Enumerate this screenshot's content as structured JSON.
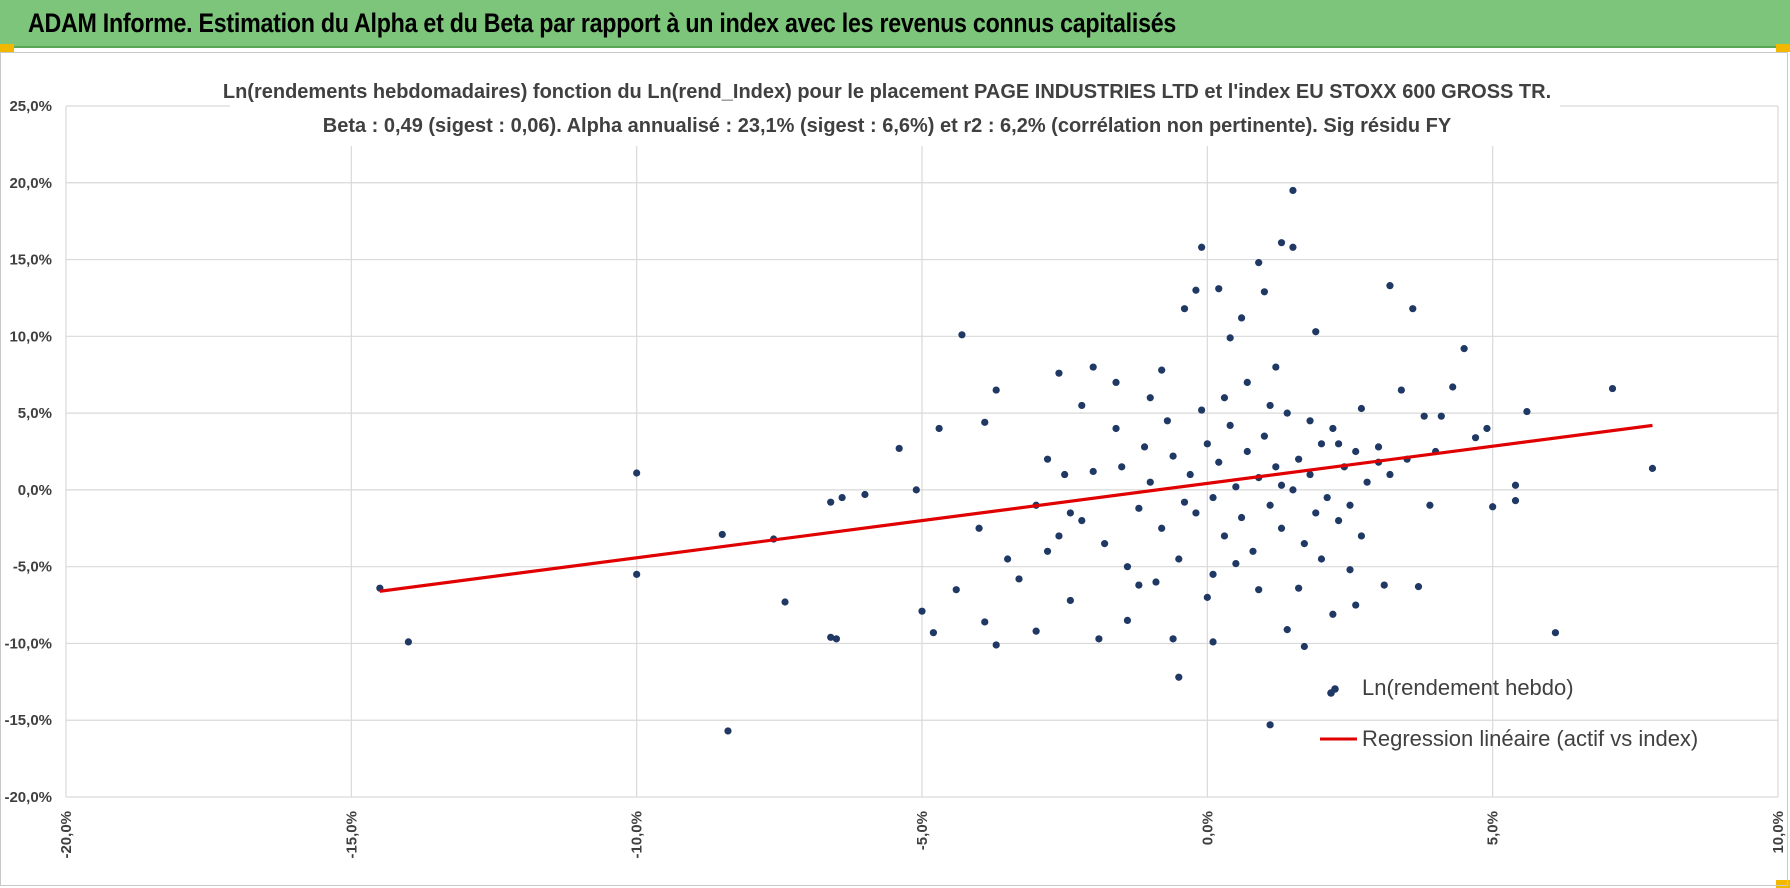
{
  "banner": {
    "title": "ADAM Informe. Estimation du Alpha et du Beta par rapport à un index avec les revenus connus capitalisés"
  },
  "colors": {
    "banner": "#7dc57a",
    "points": "#1f3864",
    "regression": "#e00000",
    "accent": "#f2b800"
  },
  "chart_data": {
    "type": "scatter",
    "title": "Ln(rendements hebdomadaires) fonction du Ln(rend_Index) pour le placement PAGE INDUSTRIES LTD et l'index EU STOXX 600 GROSS TR.",
    "subtitle": "Beta : 0,49 (sigest : 0,06).  Alpha annualisé : 23,1% (sigest : 6,6%) et r2 : 6,2% (corrélation non pertinente). Sig résidu FY",
    "xlim": [
      -0.2,
      0.1
    ],
    "ylim": [
      -0.2,
      0.25
    ],
    "grid": true,
    "legend_position": "bottom-right",
    "x_ticks": [
      "-20,0%",
      "-15,0%",
      "-10,0%",
      "-5,0%",
      "0,0%",
      "5,0%",
      "10,0%"
    ],
    "y_ticks": [
      "25,0%",
      "20,0%",
      "15,0%",
      "10,0%",
      "5,0%",
      "0,0%",
      "-5,0%",
      "-10,0%",
      "-15,0%",
      "-20,0%"
    ],
    "regression": {
      "name": "Regression linéaire (actif vs index)",
      "x": [
        -0.145,
        0.078
      ],
      "y": [
        -0.066,
        0.042
      ]
    },
    "series": [
      {
        "name": "Ln(rendement hebdo)",
        "points": [
          [
            -0.145,
            -0.064
          ],
          [
            -0.14,
            -0.099
          ],
          [
            -0.1,
            0.011
          ],
          [
            -0.1,
            -0.055
          ],
          [
            -0.085,
            -0.029
          ],
          [
            -0.084,
            -0.157
          ],
          [
            -0.076,
            -0.032
          ],
          [
            -0.074,
            -0.073
          ],
          [
            -0.066,
            -0.096
          ],
          [
            -0.065,
            -0.097
          ],
          [
            -0.066,
            -0.008
          ],
          [
            -0.064,
            -0.005
          ],
          [
            -0.06,
            -0.003
          ],
          [
            -0.054,
            0.027
          ],
          [
            -0.051,
            0.0
          ],
          [
            -0.05,
            -0.079
          ],
          [
            -0.048,
            -0.093
          ],
          [
            -0.047,
            0.04
          ],
          [
            -0.044,
            -0.065
          ],
          [
            -0.043,
            0.101
          ],
          [
            -0.04,
            -0.025
          ],
          [
            -0.039,
            0.044
          ],
          [
            -0.037,
            0.065
          ],
          [
            -0.037,
            -0.101
          ],
          [
            -0.039,
            -0.086
          ],
          [
            -0.035,
            -0.045
          ],
          [
            -0.033,
            -0.058
          ],
          [
            -0.03,
            -0.092
          ],
          [
            -0.028,
            -0.04
          ],
          [
            -0.026,
            0.076
          ],
          [
            -0.024,
            -0.072
          ],
          [
            -0.022,
            0.055
          ],
          [
            -0.02,
            0.08
          ],
          [
            -0.019,
            -0.097
          ],
          [
            -0.016,
            0.07
          ],
          [
            -0.014,
            -0.085
          ],
          [
            -0.012,
            -0.062
          ],
          [
            -0.01,
            0.06
          ],
          [
            -0.008,
            0.078
          ],
          [
            -0.006,
            -0.097
          ],
          [
            -0.005,
            -0.122
          ],
          [
            -0.004,
            0.118
          ],
          [
            -0.002,
            0.13
          ],
          [
            -0.001,
            0.158
          ],
          [
            0.0,
            -0.07
          ],
          [
            0.001,
            -0.099
          ],
          [
            0.002,
            0.131
          ],
          [
            0.004,
            0.099
          ],
          [
            0.006,
            0.112
          ],
          [
            0.009,
            0.148
          ],
          [
            0.01,
            0.129
          ],
          [
            0.012,
            0.08
          ],
          [
            0.013,
            0.161
          ],
          [
            0.015,
            0.195
          ],
          [
            0.015,
            0.158
          ],
          [
            0.016,
            -0.064
          ],
          [
            0.017,
            -0.102
          ],
          [
            0.011,
            -0.153
          ],
          [
            0.014,
            -0.091
          ],
          [
            0.019,
            0.103
          ],
          [
            0.022,
            -0.081
          ],
          [
            0.025,
            -0.052
          ],
          [
            0.026,
            -0.075
          ],
          [
            0.027,
            0.053
          ],
          [
            0.03,
            0.028
          ],
          [
            0.031,
            -0.062
          ],
          [
            0.032,
            0.133
          ],
          [
            0.034,
            0.065
          ],
          [
            0.036,
            0.118
          ],
          [
            0.037,
            -0.063
          ],
          [
            0.038,
            0.048
          ],
          [
            0.039,
            -0.01
          ],
          [
            0.041,
            0.048
          ],
          [
            0.043,
            0.067
          ],
          [
            0.045,
            0.092
          ],
          [
            0.047,
            0.034
          ],
          [
            0.049,
            0.04
          ],
          [
            0.05,
            -0.011
          ],
          [
            0.054,
            -0.007
          ],
          [
            0.054,
            0.003
          ],
          [
            0.056,
            0.051
          ],
          [
            0.061,
            -0.093
          ],
          [
            0.071,
            0.066
          ],
          [
            0.078,
            0.014
          ],
          [
            0.03,
            0.018
          ],
          [
            -0.02,
            0.012
          ],
          [
            -0.022,
            -0.02
          ],
          [
            -0.018,
            -0.035
          ],
          [
            -0.015,
            0.015
          ],
          [
            -0.012,
            -0.012
          ],
          [
            -0.01,
            0.005
          ],
          [
            -0.008,
            -0.025
          ],
          [
            -0.006,
            0.022
          ],
          [
            -0.005,
            -0.045
          ],
          [
            -0.003,
            0.01
          ],
          [
            -0.002,
            -0.015
          ],
          [
            0.0,
            0.03
          ],
          [
            0.001,
            -0.005
          ],
          [
            0.002,
            0.018
          ],
          [
            0.003,
            -0.03
          ],
          [
            0.004,
            0.042
          ],
          [
            0.005,
            0.002
          ],
          [
            0.006,
            -0.018
          ],
          [
            0.007,
            0.025
          ],
          [
            0.008,
            -0.04
          ],
          [
            0.009,
            0.008
          ],
          [
            0.01,
            0.035
          ],
          [
            0.011,
            -0.01
          ],
          [
            0.012,
            0.015
          ],
          [
            0.013,
            -0.025
          ],
          [
            0.014,
            0.05
          ],
          [
            0.015,
            0.0
          ],
          [
            0.016,
            0.02
          ],
          [
            0.017,
            -0.035
          ],
          [
            0.018,
            0.01
          ],
          [
            0.019,
            -0.015
          ],
          [
            0.02,
            0.03
          ],
          [
            0.021,
            -0.005
          ],
          [
            0.022,
            0.04
          ],
          [
            0.023,
            -0.02
          ],
          [
            0.024,
            0.015
          ],
          [
            0.025,
            -0.01
          ],
          [
            0.026,
            0.025
          ],
          [
            0.027,
            -0.03
          ],
          [
            0.028,
            0.005
          ],
          [
            -0.03,
            -0.01
          ],
          [
            -0.028,
            0.02
          ],
          [
            -0.026,
            -0.03
          ],
          [
            -0.025,
            0.01
          ],
          [
            -0.024,
            -0.015
          ],
          [
            -0.016,
            0.04
          ],
          [
            -0.014,
            -0.05
          ],
          [
            -0.011,
            0.028
          ],
          [
            -0.009,
            -0.06
          ],
          [
            -0.007,
            0.045
          ],
          [
            -0.004,
            -0.008
          ],
          [
            -0.001,
            0.052
          ],
          [
            0.001,
            -0.055
          ],
          [
            0.003,
            0.06
          ],
          [
            0.005,
            -0.048
          ],
          [
            0.007,
            0.07
          ],
          [
            0.009,
            -0.065
          ],
          [
            0.011,
            0.055
          ],
          [
            0.013,
            0.003
          ],
          [
            0.018,
            0.045
          ],
          [
            0.02,
            -0.045
          ],
          [
            0.023,
            0.03
          ],
          [
            0.032,
            0.01
          ],
          [
            0.035,
            0.02
          ],
          [
            0.04,
            0.025
          ]
        ]
      }
    ]
  }
}
